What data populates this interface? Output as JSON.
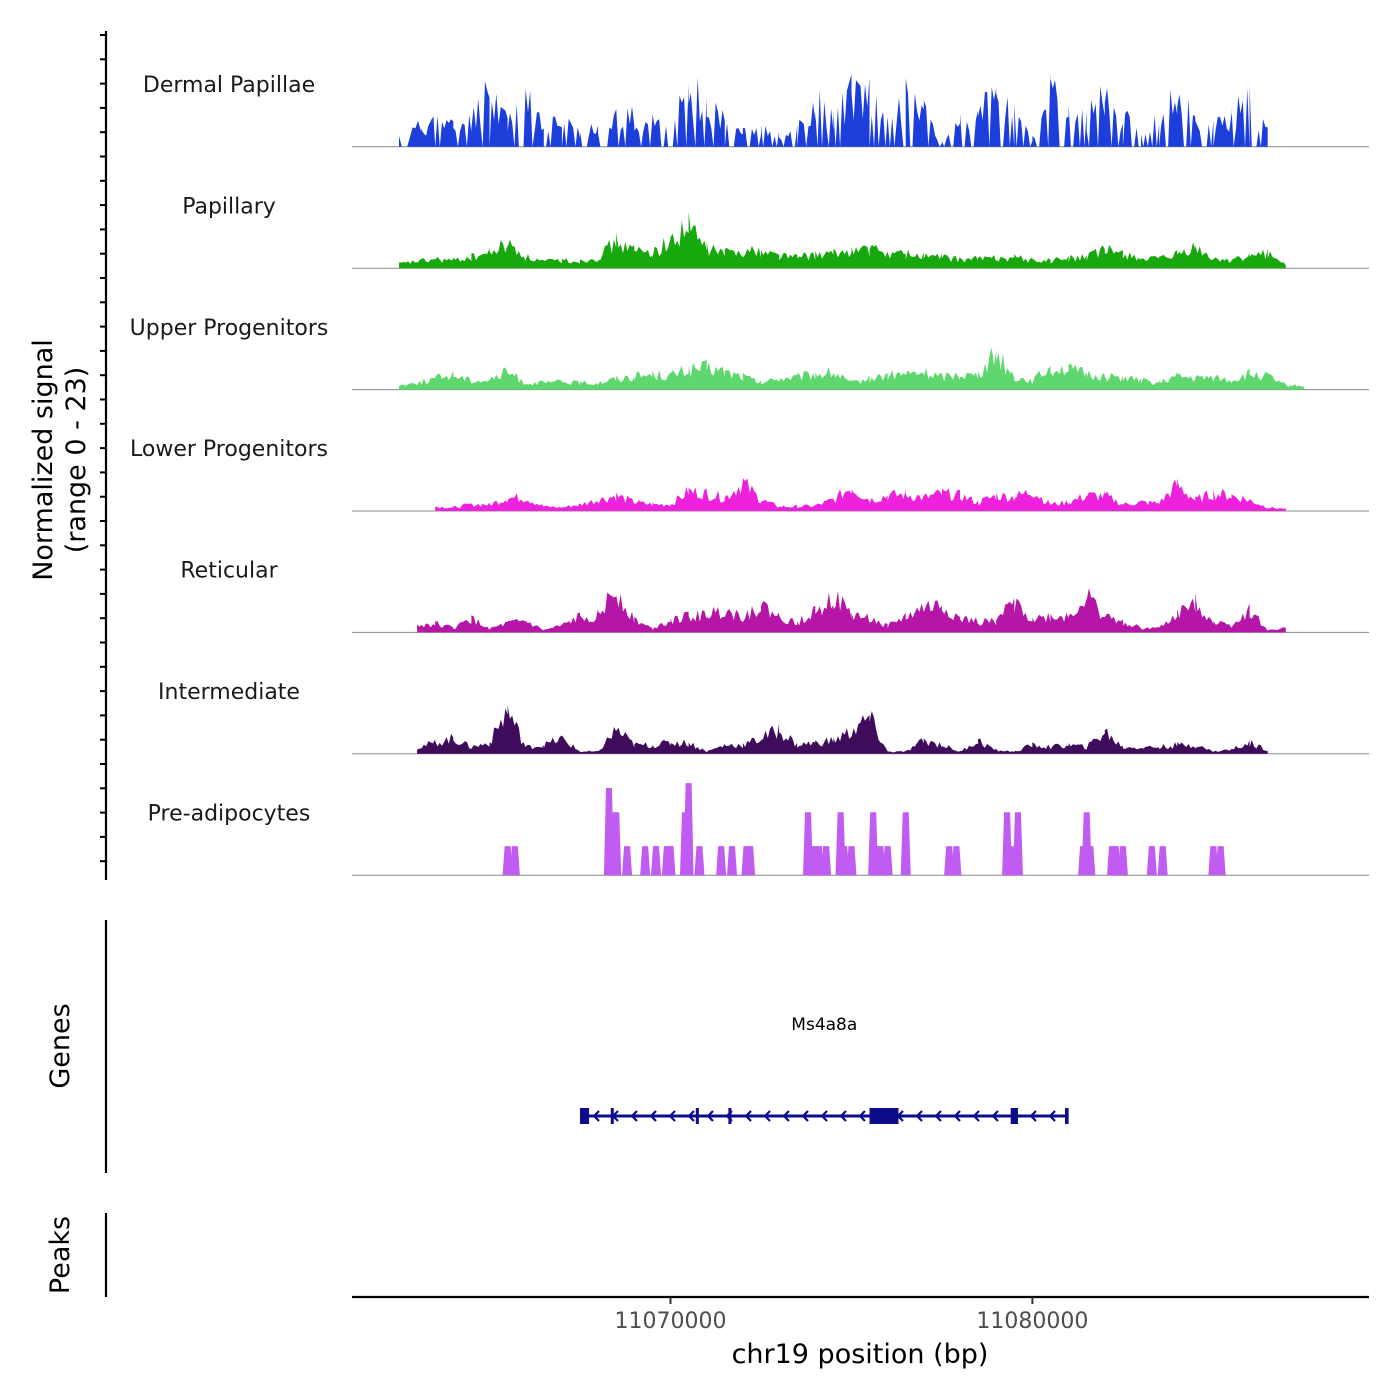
{
  "chart_data": {
    "type": "area",
    "title": "",
    "ylabel_line1": "Normalized signal",
    "ylabel_line2": "(range 0 - 23)",
    "ylim": [
      0,
      23
    ],
    "xlabel": "chr19 position (bp)",
    "xlim": [
      11061200,
      11089300
    ],
    "x_ticks": [
      11070000,
      11080000
    ],
    "x_tick_labels": [
      "11070000",
      "11080000"
    ],
    "genes_label": "Genes",
    "peaks_label": "Peaks",
    "series": [
      {
        "name": "Dermal Papillae",
        "color": "#1c3fdc",
        "style": "spiky",
        "base": 2,
        "x": [
          11062500,
          11063100,
          11063500,
          11064000,
          11064500,
          11065000,
          11065500,
          11066000,
          11066500,
          11067000,
          11067500,
          11068000,
          11068500,
          11069000,
          11069500,
          11070000,
          11070500,
          11071000,
          11071500,
          11072000,
          11072500,
          11073000,
          11073500,
          11074000,
          11074500,
          11075000,
          11075500,
          11076000,
          11076500,
          11077000,
          11077500,
          11078000,
          11078500,
          11079000,
          11079500,
          11080000,
          11080500,
          11081000,
          11081500,
          11082000,
          11082500,
          11083000,
          11083500,
          11084000,
          11084500,
          11085000,
          11085500,
          11086000,
          11086500
        ],
        "values": [
          2,
          5,
          6,
          5,
          7,
          13,
          7,
          11,
          6,
          6,
          4,
          5,
          8,
          7,
          6,
          6,
          13,
          11,
          6,
          5,
          4,
          3,
          4,
          11,
          7,
          13,
          12,
          6,
          12,
          9,
          1,
          6,
          7,
          14,
          8,
          2,
          13,
          8,
          7,
          13,
          7,
          4,
          7,
          12,
          6,
          5,
          8,
          11,
          6
        ]
      },
      {
        "name": "Papillary",
        "color": "#16a80c",
        "style": "area",
        "base": 1,
        "x": [
          11062500,
          11063000,
          11063500,
          11064000,
          11064500,
          11065000,
          11065500,
          11066000,
          11066500,
          11067000,
          11067500,
          11068000,
          11068500,
          11069000,
          11069500,
          11070000,
          11070500,
          11071000,
          11071500,
          11072000,
          11072500,
          11073000,
          11073500,
          11074000,
          11074500,
          11075000,
          11075500,
          11076000,
          11076500,
          11077000,
          11077500,
          11078000,
          11078500,
          11079000,
          11079500,
          11080000,
          11080500,
          11081000,
          11081500,
          11082000,
          11082500,
          11083000,
          11083500,
          11084000,
          11084500,
          11085000,
          11085500,
          11086000,
          11086500,
          11087000
        ],
        "values": [
          1,
          1.5,
          2,
          1.8,
          2.5,
          3.5,
          5.5,
          2.5,
          1.5,
          1.8,
          1.6,
          2.5,
          6,
          4,
          3.5,
          6,
          9.5,
          4.5,
          3.5,
          4,
          3.8,
          3,
          2.5,
          3,
          3.2,
          4,
          4.2,
          3.5,
          3.2,
          2.8,
          2.5,
          2,
          2.2,
          2.3,
          2.5,
          1.8,
          1.7,
          2.2,
          2.5,
          4,
          3.5,
          2.2,
          2,
          3,
          4.5,
          2,
          2,
          2.5,
          3.5,
          0.8
        ]
      },
      {
        "name": "Upper Progenitors",
        "color": "#5ed86e",
        "style": "area",
        "base": 1,
        "x": [
          11062500,
          11063000,
          11063500,
          11064000,
          11064500,
          11065000,
          11065500,
          11066000,
          11066500,
          11067000,
          11067500,
          11068000,
          11068500,
          11069000,
          11069500,
          11070000,
          11070500,
          11071000,
          11071500,
          11072000,
          11072500,
          11073000,
          11073500,
          11074000,
          11074500,
          11075000,
          11075500,
          11076000,
          11076500,
          11077000,
          11077500,
          11078000,
          11078500,
          11079000,
          11079500,
          11080000,
          11080500,
          11081000,
          11081500,
          11082000,
          11082500,
          11083000,
          11083500,
          11084000,
          11084500,
          11085000,
          11085500,
          11086000,
          11086500,
          11087000,
          11087500
        ],
        "values": [
          1,
          1.5,
          2.5,
          3.5,
          2,
          2.2,
          4,
          1.5,
          1.5,
          1.8,
          1.5,
          1.5,
          2.5,
          3,
          3.5,
          3.2,
          4.5,
          5,
          4,
          3,
          1.5,
          2.5,
          2.8,
          3.5,
          3.8,
          1.5,
          2.5,
          3.2,
          3.5,
          3.8,
          3,
          3.5,
          3.2,
          8.5,
          2.8,
          2,
          5,
          4.5,
          3.5,
          3,
          2.8,
          2,
          1.5,
          3,
          2.5,
          2.8,
          2,
          3.5,
          3,
          1,
          0.8
        ]
      },
      {
        "name": "Lower Progenitors",
        "color": "#ee22dc",
        "style": "area",
        "base": 0.8,
        "x": [
          11063500,
          11064000,
          11064500,
          11065000,
          11065500,
          11066000,
          11066500,
          11067000,
          11067500,
          11068000,
          11068500,
          11069000,
          11069500,
          11070000,
          11070500,
          11071000,
          11071500,
          11072000,
          11072500,
          11073000,
          11073500,
          11074000,
          11074500,
          11075000,
          11075500,
          11076000,
          11076500,
          11077000,
          11077500,
          11078000,
          11078500,
          11079000,
          11079500,
          11080000,
          11080500,
          11081000,
          11081500,
          11082000,
          11082500,
          11083000,
          11083500,
          11084000,
          11084500,
          11085000,
          11085500,
          11086000,
          11086500,
          11087000
        ],
        "values": [
          1,
          0.8,
          1.5,
          1.5,
          3,
          3,
          1,
          0.8,
          1.5,
          2.5,
          3.5,
          2,
          1.5,
          1.5,
          4.5,
          4,
          3,
          6.5,
          2.5,
          1,
          1,
          1.2,
          2.5,
          5.5,
          2.5,
          3.5,
          3.8,
          3,
          4,
          3.5,
          2,
          3.5,
          3.2,
          4.5,
          1.5,
          2,
          3.5,
          3.5,
          1.5,
          2,
          1.8,
          6,
          2.5,
          4,
          3.5,
          2.5,
          0.8,
          0.5
        ]
      },
      {
        "name": "Reticular",
        "color": "#b516a8",
        "style": "area",
        "base": 0.8,
        "x": [
          11063000,
          11063500,
          11064000,
          11064500,
          11065000,
          11065500,
          11066000,
          11066500,
          11067000,
          11067500,
          11068000,
          11068500,
          11069000,
          11069500,
          11070000,
          11070500,
          11071000,
          11071500,
          11072000,
          11072500,
          11073000,
          11073500,
          11074000,
          11074500,
          11075000,
          11075500,
          11076000,
          11076500,
          11077000,
          11077500,
          11078000,
          11078500,
          11079000,
          11079500,
          11080000,
          11080500,
          11081000,
          11081500,
          11082000,
          11082500,
          11083000,
          11083500,
          11084000,
          11084500,
          11085000,
          11085500,
          11086000,
          11086500,
          11087000
        ],
        "values": [
          1.5,
          2,
          1,
          3,
          0.8,
          2,
          2.5,
          0.5,
          1.5,
          3.5,
          4,
          9.5,
          3,
          0.8,
          3,
          3.5,
          4,
          5,
          3.5,
          6,
          3.5,
          2,
          5.5,
          8,
          4,
          3,
          1.5,
          3.5,
          5.5,
          6,
          3,
          2.5,
          2.5,
          7,
          3,
          3.5,
          3.5,
          8,
          3.5,
          2.5,
          1,
          1,
          4,
          7,
          2.5,
          1.5,
          5,
          0.5,
          1
        ]
      },
      {
        "name": "Intermediate",
        "color": "#3f0c5c",
        "style": "area",
        "base": 0.8,
        "x": [
          11063000,
          11063500,
          11064000,
          11064500,
          11065000,
          11065500,
          11066000,
          11066500,
          11067000,
          11067500,
          11068000,
          11068500,
          11069000,
          11069500,
          11070000,
          11070500,
          11071000,
          11071500,
          11072000,
          11072500,
          11073000,
          11073500,
          11074000,
          11074500,
          11075000,
          11075500,
          11076000,
          11076500,
          11077000,
          11077500,
          11078000,
          11078500,
          11079000,
          11079500,
          11080000,
          11080500,
          11081000,
          11081500,
          11082000,
          11082500,
          11083000,
          11083500,
          11084000,
          11084500,
          11085000,
          11085500,
          11086000,
          11086500
        ],
        "values": [
          1.5,
          2.5,
          3.5,
          1.5,
          2.5,
          10,
          1.5,
          2,
          3.5,
          0.5,
          0.5,
          5.5,
          2,
          2,
          2.5,
          2.5,
          0.5,
          2,
          2,
          3.5,
          5.5,
          2,
          2.5,
          3,
          5,
          8,
          0.5,
          0.5,
          3,
          2,
          0.5,
          3,
          0.8,
          0.5,
          2,
          1.5,
          2,
          1.5,
          5,
          1.5,
          1.5,
          1.5,
          2,
          2,
          0.5,
          1,
          2.5,
          1
        ]
      },
      {
        "name": "Pre-adipocytes",
        "color": "#c05cf2",
        "style": "bars",
        "base": 0,
        "x": [
          11065500,
          11065700,
          11068300,
          11068400,
          11068500,
          11068800,
          11069300,
          11069600,
          11069900,
          11070000,
          11070400,
          11070500,
          11070800,
          11071400,
          11071700,
          11072100,
          11072200,
          11073800,
          11073950,
          11074100,
          11074300,
          11074700,
          11074800,
          11075000,
          11075600,
          11075700,
          11075800,
          11076000,
          11076500,
          11077700,
          11077900,
          11079300,
          11079400,
          11079600,
          11081400,
          11081500,
          11081600,
          11082200,
          11082300,
          11082500,
          11083300,
          11083600,
          11085000,
          11085200
        ],
        "values": [
          6,
          6,
          18,
          13,
          13,
          6,
          6,
          6,
          6,
          6,
          13,
          19,
          6,
          6,
          6,
          6,
          6,
          13,
          6,
          6,
          6,
          13,
          6,
          6,
          13,
          6,
          6,
          6,
          13,
          6,
          6,
          13,
          6,
          13,
          6,
          13,
          6,
          6,
          6,
          6,
          6,
          6,
          6,
          6
        ]
      }
    ],
    "gene": {
      "name": "Ms4a8a",
      "start": 11067500,
      "end": 11081000,
      "strand": "-",
      "color": "#0d0d8c",
      "exons": [
        [
          11067500,
          11067750
        ],
        [
          11068350,
          11068420
        ],
        [
          11070700,
          11070780
        ],
        [
          11071600,
          11071660
        ],
        [
          11075500,
          11076300
        ],
        [
          11079400,
          11079600
        ],
        [
          11080900,
          11081000
        ]
      ]
    }
  }
}
